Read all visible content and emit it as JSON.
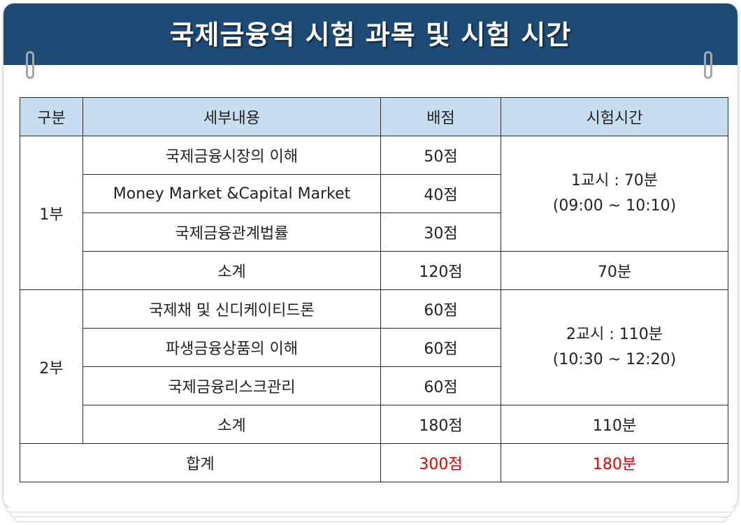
{
  "header": {
    "title": "국제금융역 시험 과목 및 시험 시간"
  },
  "table": {
    "columns": [
      "구분",
      "세부내용",
      "배점",
      "시험시간"
    ],
    "part1": {
      "label": "1부",
      "rows": [
        {
          "subject": "국제금융시장의 이해",
          "score": "50점"
        },
        {
          "subject": "Money Market &Capital Market",
          "score": "40점"
        },
        {
          "subject": "국제금융관계법률",
          "score": "30점"
        }
      ],
      "time_line1": "1교시 : 70분",
      "time_line2": "(09:00 ~ 10:10)",
      "subtotal_label": "소계",
      "subtotal_score": "120점",
      "subtotal_time": "70분"
    },
    "part2": {
      "label": "2부",
      "rows": [
        {
          "subject": "국제채 및 신디케이티드론",
          "score": "60점"
        },
        {
          "subject": "파생금융상품의 이해",
          "score": "60점"
        },
        {
          "subject": "국제금융리스크관리",
          "score": "60점"
        }
      ],
      "time_line1": "2교시 : 110분",
      "time_line2": "(10:30 ~ 12:20)",
      "subtotal_label": "소계",
      "subtotal_score": "180점",
      "subtotal_time": "110분"
    },
    "total": {
      "label": "합계",
      "score": "300점",
      "time": "180분"
    }
  },
  "colors": {
    "header_bg": "#1e4a76",
    "table_header_bg": "#c9ddf1",
    "total_highlight": "#e60000"
  }
}
